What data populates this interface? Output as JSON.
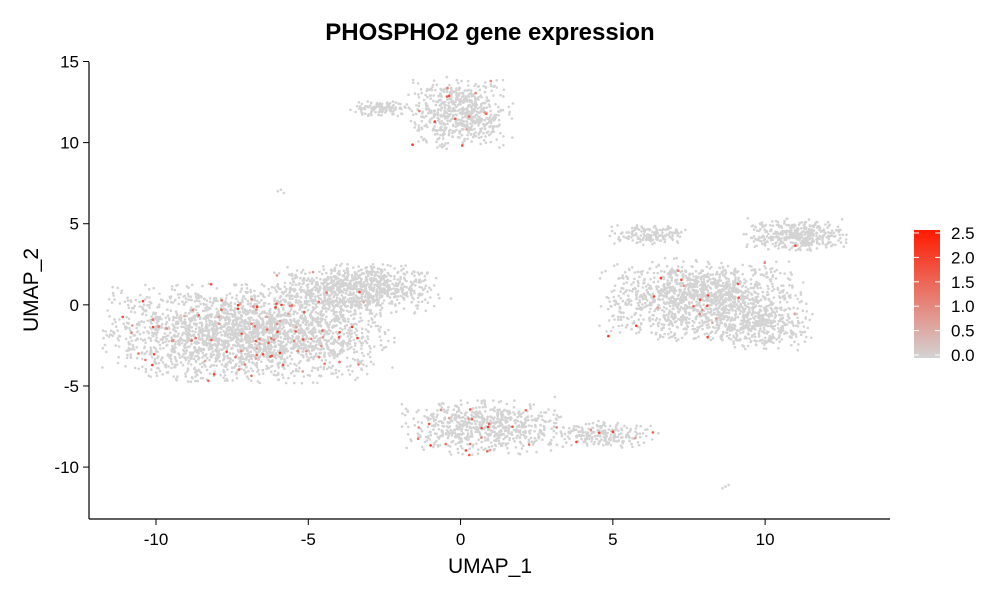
{
  "chart_data": {
    "type": "scatter",
    "title": "PHOSPHO2 gene expression",
    "xlabel": "UMAP_1",
    "ylabel": "UMAP_2",
    "xlim": [
      -12.2,
      14.1
    ],
    "ylim": [
      -13.2,
      15.4
    ],
    "xticks": [
      -10,
      -5,
      0,
      5,
      10
    ],
    "yticks": [
      -10,
      -5,
      0,
      5,
      10,
      15
    ],
    "grid": false,
    "legend": {
      "placement": "right",
      "ticks": [
        "2.5",
        "2.0",
        "1.5",
        "1.0",
        "0.5",
        "0.0"
      ],
      "range": [
        0,
        2.55
      ]
    },
    "colors": {
      "low": "#d3d3d3",
      "high": "#ff1a00"
    },
    "clusters": [
      {
        "id": "left-large",
        "cx": -7.0,
        "cy": -1.8,
        "sx": 2.8,
        "sy": 1.8,
        "n": 2600,
        "expr_fraction": 0.03
      },
      {
        "id": "left-upper",
        "cx": -3.4,
        "cy": 1.0,
        "sx": 1.6,
        "sy": 0.9,
        "n": 900,
        "expr_fraction": 0.012
      },
      {
        "id": "top-center",
        "cx": 0.0,
        "cy": 11.8,
        "sx": 1.0,
        "sy": 1.3,
        "n": 650,
        "expr_fraction": 0.02
      },
      {
        "id": "top-left-small",
        "cx": -2.6,
        "cy": 12.1,
        "sx": 0.6,
        "sy": 0.3,
        "n": 110,
        "expr_fraction": 0.0
      },
      {
        "id": "bottom-center",
        "cx": 0.8,
        "cy": -7.6,
        "sx": 1.6,
        "sy": 1.0,
        "n": 700,
        "expr_fraction": 0.02
      },
      {
        "id": "bottom-right-tail",
        "cx": 4.8,
        "cy": -8.0,
        "sx": 1.0,
        "sy": 0.5,
        "n": 220,
        "expr_fraction": 0.02
      },
      {
        "id": "right-large",
        "cx": 8.0,
        "cy": 0.3,
        "sx": 2.0,
        "sy": 1.5,
        "n": 1500,
        "expr_fraction": 0.012
      },
      {
        "id": "right-upper-left",
        "cx": 6.2,
        "cy": 4.3,
        "sx": 0.8,
        "sy": 0.4,
        "n": 150,
        "expr_fraction": 0.0
      },
      {
        "id": "right-upper-right",
        "cx": 11.0,
        "cy": 4.3,
        "sx": 1.0,
        "sy": 0.6,
        "n": 380,
        "expr_fraction": 0.01
      },
      {
        "id": "right-lower",
        "cx": 10.0,
        "cy": -1.5,
        "sx": 0.9,
        "sy": 0.8,
        "n": 260,
        "expr_fraction": 0.0
      }
    ],
    "outliers": [
      {
        "x": -6.0,
        "y": 7.0
      },
      {
        "x": -5.9,
        "y": 7.1
      },
      {
        "x": -5.8,
        "y": 6.9
      },
      {
        "x": 8.7,
        "y": -11.2
      },
      {
        "x": 8.6,
        "y": -11.3
      },
      {
        "x": 8.8,
        "y": -11.1
      }
    ]
  }
}
